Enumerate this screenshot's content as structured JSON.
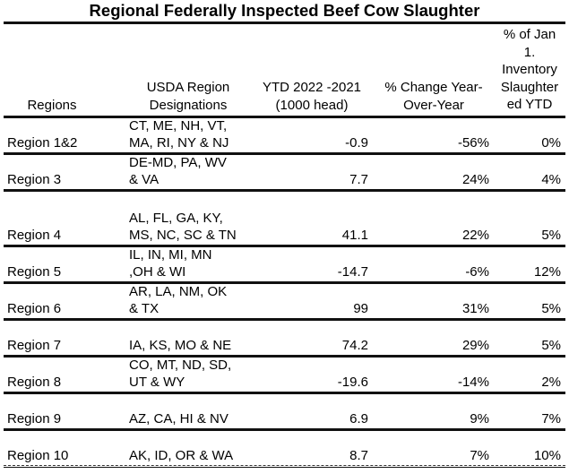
{
  "title": "Regional Federally Inspected Beef Cow Slaughter",
  "headers": {
    "regions": [
      "Regions"
    ],
    "designations": [
      "USDA Region",
      "Designations"
    ],
    "ytd": [
      "YTD 2022 -2021",
      "(1000 head)"
    ],
    "pct_change": [
      "% Change Year-",
      "Over-Year"
    ],
    "pct_inventory": [
      "% of Jan",
      "1.",
      "Inventory",
      "Slaughter",
      "ed YTD"
    ]
  },
  "rows": [
    {
      "region": "Region 1&2",
      "designation": [
        "CT, ME, NH, VT,",
        "MA, RI, NY & NJ"
      ],
      "ytd": "-0.9",
      "pct_change": "-56%",
      "pct_inventory": "0%"
    },
    {
      "region": "Region 3",
      "designation": [
        "DE-MD, PA, WV",
        "& VA"
      ],
      "ytd": "7.7",
      "pct_change": "24%",
      "pct_inventory": "4%"
    },
    {
      "region": "Region 4",
      "designation": [
        "AL, FL, GA, KY,",
        "MS, NC, SC & TN"
      ],
      "ytd": "41.1",
      "pct_change": "22%",
      "pct_inventory": "5%"
    },
    {
      "region": "Region 5",
      "designation": [
        "IL, IN, MI, MN",
        ",OH & WI"
      ],
      "ytd": "-14.7",
      "pct_change": "-6%",
      "pct_inventory": "12%"
    },
    {
      "region": "Region 6",
      "designation": [
        "AR, LA, NM, OK",
        "& TX"
      ],
      "ytd": "99",
      "pct_change": "31%",
      "pct_inventory": "5%"
    },
    {
      "region": "Region 7",
      "designation": [
        "IA, KS, MO & NE"
      ],
      "ytd": "74.2",
      "pct_change": "29%",
      "pct_inventory": "5%"
    },
    {
      "region": "Region 8",
      "designation": [
        "CO, MT, ND, SD,",
        "UT & WY"
      ],
      "ytd": "-19.6",
      "pct_change": "-14%",
      "pct_inventory": "2%"
    },
    {
      "region": "Region 9",
      "designation": [
        "AZ, CA, HI & NV"
      ],
      "ytd": "6.9",
      "pct_change": "9%",
      "pct_inventory": "7%"
    },
    {
      "region": "Region 10",
      "designation": [
        "AK, ID, OR & WA"
      ],
      "ytd": "8.7",
      "pct_change": "7%",
      "pct_inventory": "10%"
    }
  ]
}
